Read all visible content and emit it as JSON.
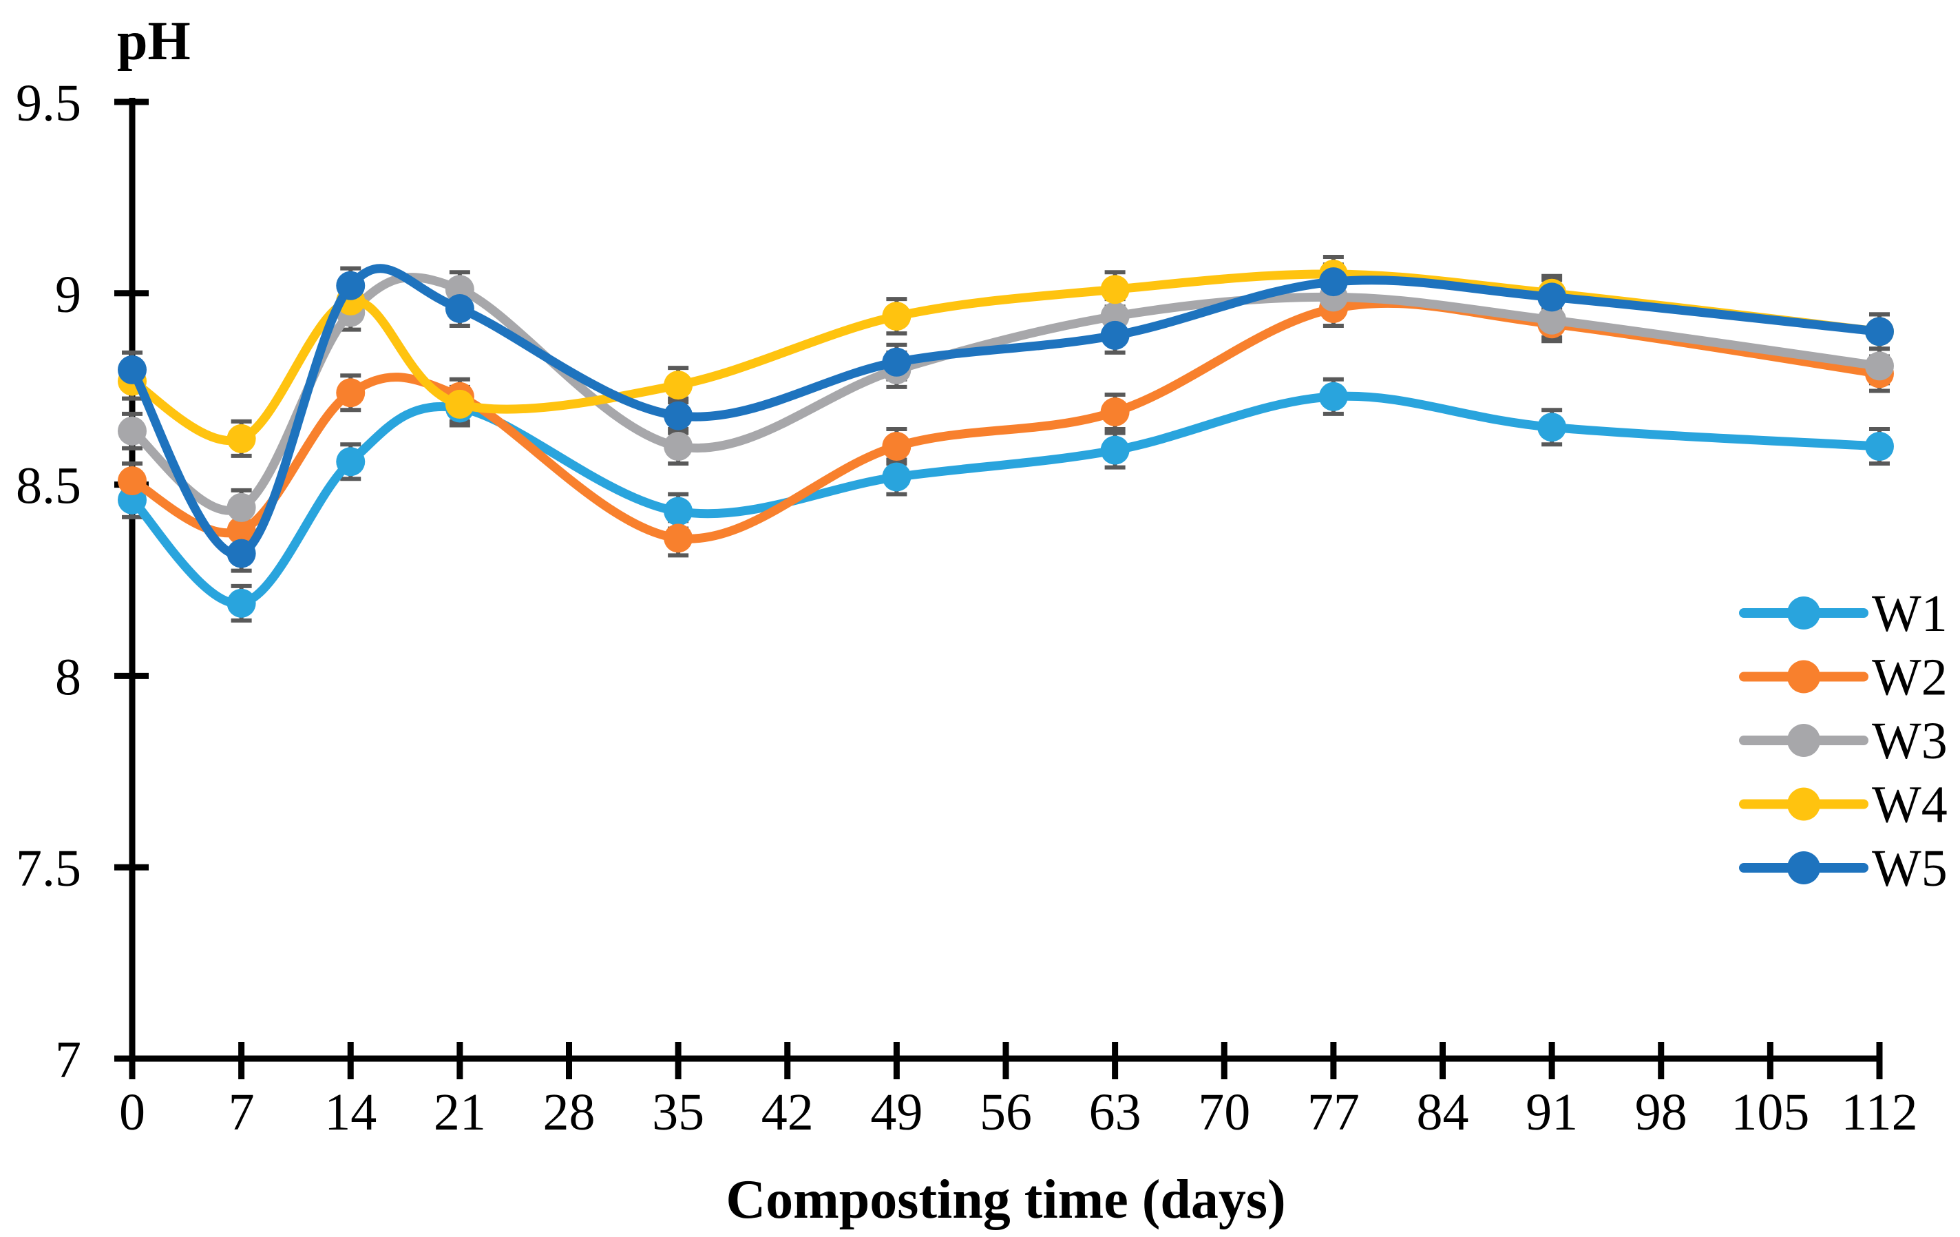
{
  "page": {
    "background": "#ffffff"
  },
  "chart_data": {
    "type": "line",
    "title": "",
    "y_label": "pH",
    "x_label": "Composting time (days)",
    "xlim": [
      0,
      112
    ],
    "ylim": [
      7,
      9.5
    ],
    "x_ticks": [
      0,
      7,
      14,
      21,
      28,
      35,
      42,
      49,
      56,
      63,
      70,
      77,
      84,
      91,
      98,
      105,
      112
    ],
    "y_ticks": [
      7,
      7.5,
      8,
      8.5,
      9,
      9.5
    ],
    "grid": false,
    "smooth": true,
    "marker": "circle",
    "legend_position": "right-middle",
    "axis_color": "#000000",
    "error_bar": 0.045,
    "error_bar_color": "#595959",
    "x": [
      0,
      7,
      14,
      21,
      35,
      49,
      63,
      77,
      91,
      112
    ],
    "series": [
      {
        "name": "W1",
        "color": "#29A4DD",
        "values": [
          8.46,
          8.19,
          8.56,
          8.7,
          8.43,
          8.52,
          8.59,
          8.73,
          8.65,
          8.6
        ]
      },
      {
        "name": "W2",
        "color": "#F8802D",
        "values": [
          8.51,
          8.38,
          8.74,
          8.73,
          8.36,
          8.6,
          8.69,
          8.96,
          8.92,
          8.79
        ]
      },
      {
        "name": "W3",
        "color": "#A7A7AA",
        "values": [
          8.64,
          8.44,
          8.95,
          9.01,
          8.6,
          8.8,
          8.94,
          8.99,
          8.93,
          8.81
        ]
      },
      {
        "name": "W4",
        "color": "#FFC30F",
        "values": [
          8.77,
          8.62,
          8.98,
          8.71,
          8.76,
          8.94,
          9.01,
          9.05,
          9.0,
          8.9
        ]
      },
      {
        "name": "W5",
        "color": "#1E73BE",
        "values": [
          8.8,
          8.32,
          9.02,
          8.96,
          8.68,
          8.82,
          8.89,
          9.03,
          8.99,
          8.9
        ]
      }
    ]
  }
}
